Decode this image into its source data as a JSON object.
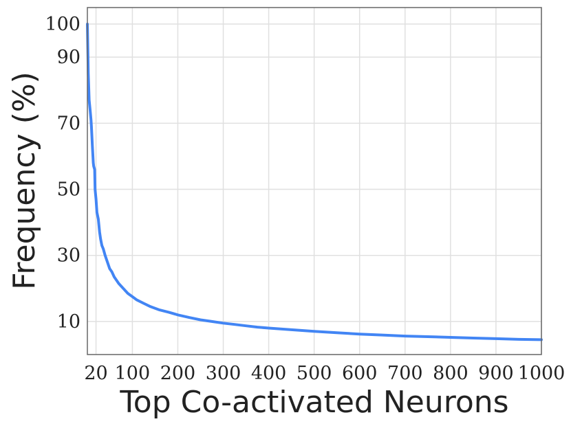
{
  "chart_data": {
    "type": "line",
    "title": "",
    "xlabel": "Top Co-activated Neurons",
    "ylabel": "Frequency (%)",
    "xlim": [
      1,
      1000
    ],
    "ylim": [
      0,
      105
    ],
    "x_ticks": [
      20,
      100,
      200,
      300,
      400,
      500,
      600,
      700,
      800,
      900,
      1000
    ],
    "y_ticks": [
      10,
      30,
      50,
      70,
      90,
      100
    ],
    "grid": true,
    "legend": "none",
    "colors": {
      "line": "#4285f4",
      "grid": "#e0e0e0",
      "frame": "#666666"
    },
    "series": [
      {
        "x": [
          1,
          2,
          3,
          5,
          7,
          9,
          10,
          12,
          14,
          15,
          17,
          18,
          20,
          22,
          25,
          28,
          30,
          33,
          36,
          40,
          45,
          50,
          55,
          60,
          70,
          80,
          90,
          100,
          110,
          125,
          140,
          160,
          180,
          200,
          225,
          250,
          275,
          300,
          325,
          350,
          375,
          400,
          450,
          500,
          550,
          600,
          650,
          700,
          750,
          800,
          850,
          900,
          950,
          1000
        ],
        "y": [
          100,
          92,
          85,
          77,
          74,
          71,
          69,
          63,
          58,
          57,
          56,
          50,
          47,
          43,
          41,
          37,
          35,
          33,
          32,
          30,
          28,
          26,
          25,
          23.5,
          21.5,
          20,
          18.5,
          17.5,
          16.5,
          15.5,
          14.5,
          13.5,
          12.8,
          12,
          11.2,
          10.5,
          10,
          9.5,
          9.1,
          8.7,
          8.3,
          8,
          7.5,
          7,
          6.6,
          6.2,
          5.9,
          5.6,
          5.4,
          5.2,
          5,
          4.8,
          4.6,
          4.5
        ]
      }
    ]
  }
}
